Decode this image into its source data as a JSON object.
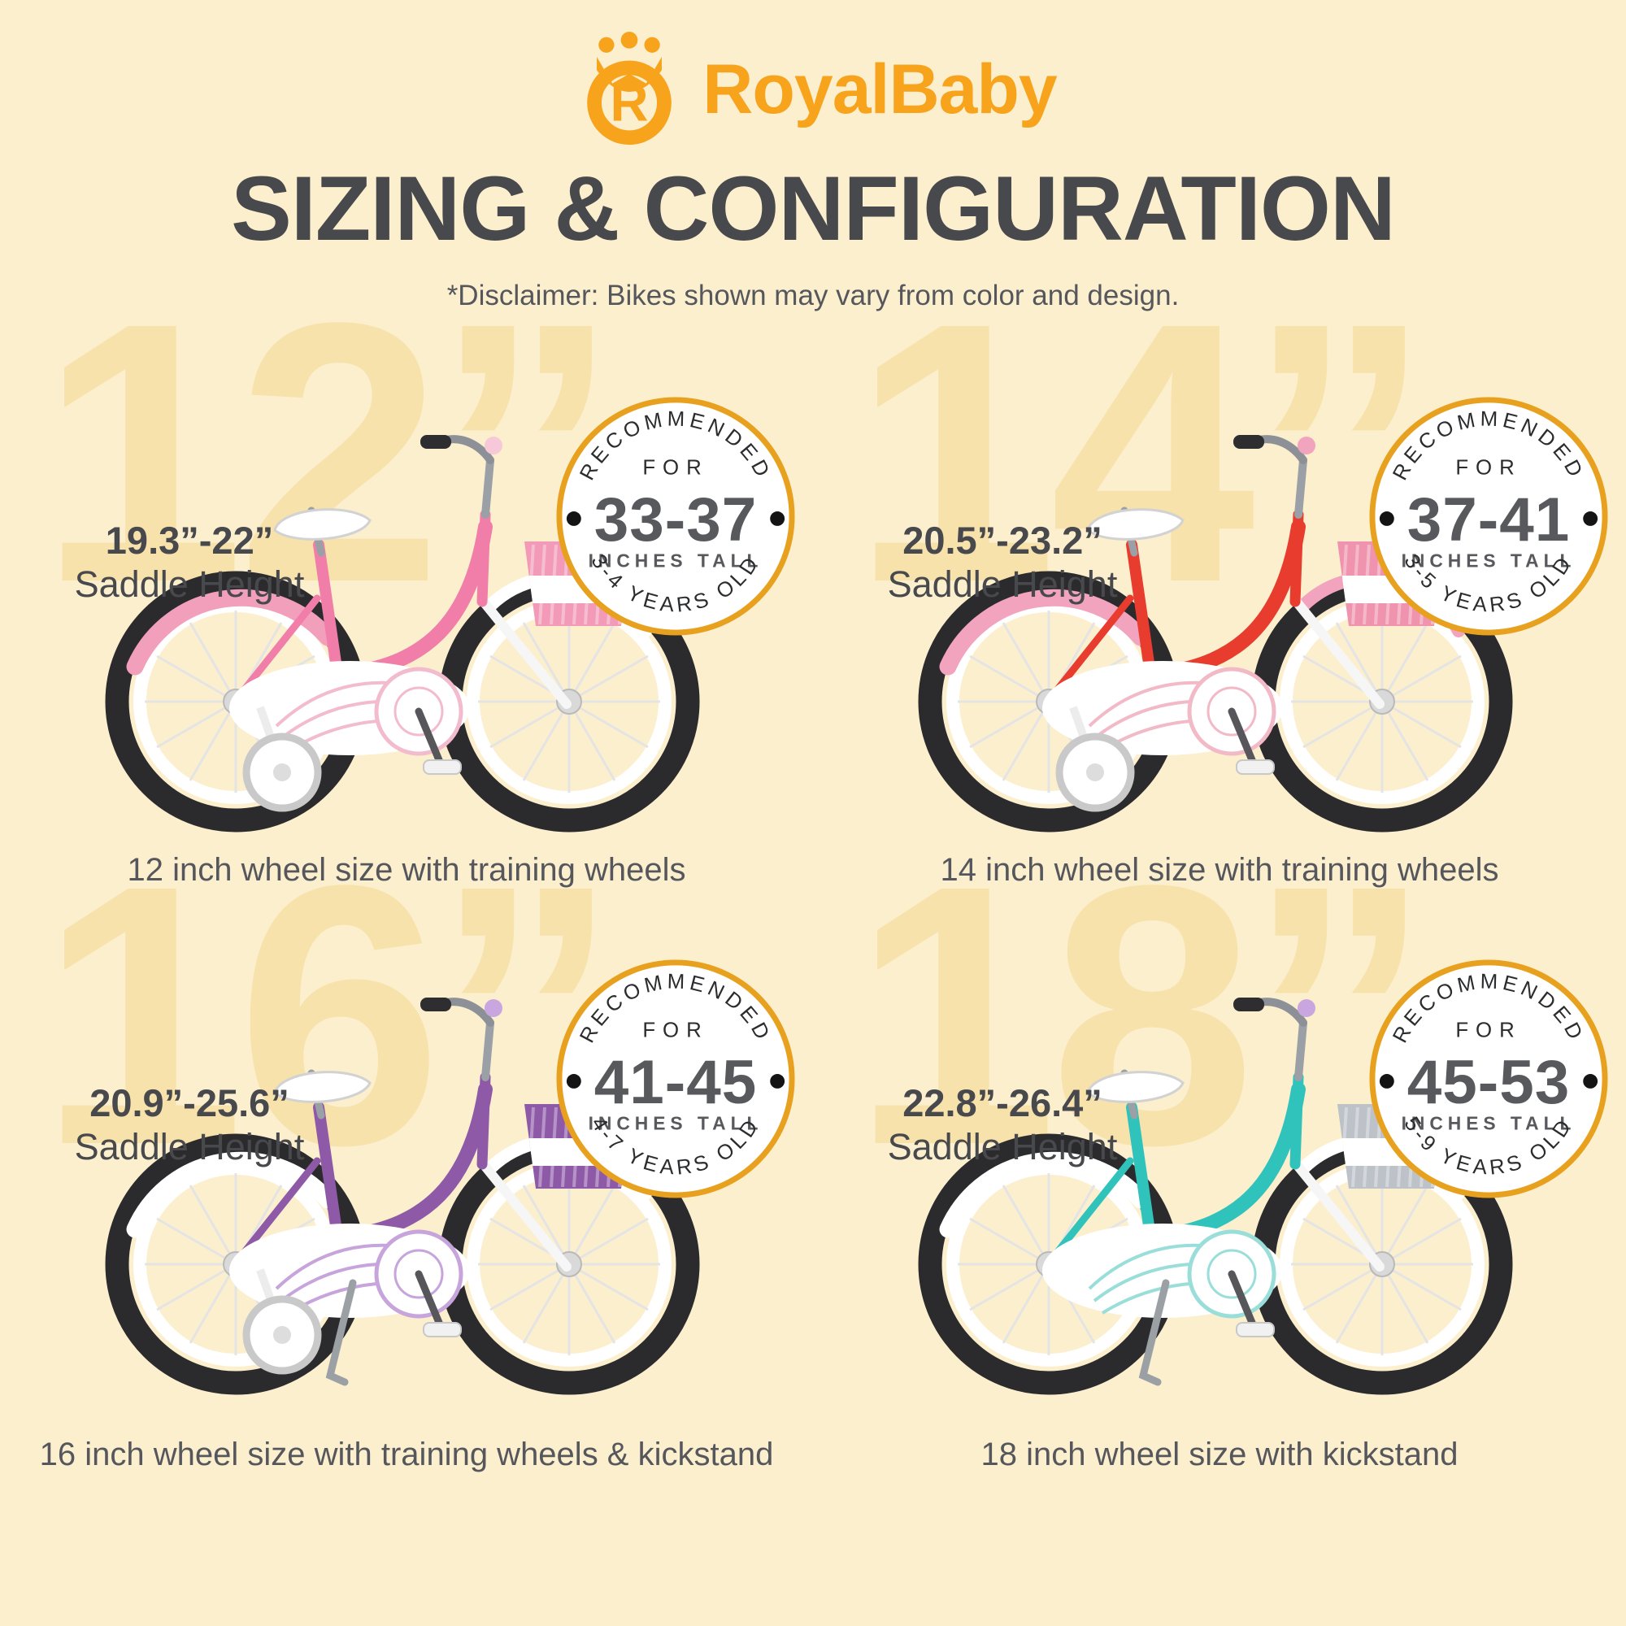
{
  "colors": {
    "background": "#FCEFCE",
    "big_number": "#F8E2AB",
    "brand_orange": "#F7A31C",
    "badge_ring": "#E8A11E",
    "title_gray": "#48494D",
    "text_gray": "#55575C",
    "badge_number_gray": "#58595D",
    "badge_text_dark": "#2B2C2E"
  },
  "header": {
    "brand": "RoyalBaby",
    "title": "SIZING & CONFIGURATION",
    "disclaimer": "*Disclaimer: Bikes shown may vary from color and design."
  },
  "badge_labels": {
    "recommended": "RECOMMENDED",
    "for": "FOR",
    "inches": "INCHES TALL"
  },
  "bikes": [
    {
      "size_label": "12”",
      "saddle_range": "19.3”-22”",
      "saddle_label": "Saddle Height",
      "height_range": "33-37",
      "age_range": "3-4 YEARS OLD",
      "caption": "12 inch wheel size with training wheels",
      "training_wheels": true,
      "kickstand": false,
      "colors": {
        "frame": "#F07EA8",
        "fender": "#F29FBC",
        "fender_front": "#FFFFFF",
        "basket": "#F29AB8",
        "wing": "#F3BBCE",
        "deco": "#F7C8D8"
      }
    },
    {
      "size_label": "14”",
      "saddle_range": "20.5”-23.2”",
      "saddle_label": "Saddle Height",
      "height_range": "37-41",
      "age_range": "3-5 YEARS OLD",
      "caption": "14 inch wheel size with training wheels",
      "training_wheels": true,
      "kickstand": false,
      "colors": {
        "frame": "#E73C2E",
        "fender": "#F2A3BE",
        "fender_front": "#F2A3BE",
        "basket": "#EF93AE",
        "wing": "#F2B9C7",
        "deco": "#F2A3BE"
      }
    },
    {
      "size_label": "16”",
      "saddle_range": "20.9”-25.6”",
      "saddle_label": "Saddle Height",
      "height_range": "41-45",
      "age_range": "4-7 YEARS OLD",
      "caption": "16 inch wheel size with training wheels & kickstand",
      "training_wheels": true,
      "kickstand": true,
      "colors": {
        "frame": "#8E5AA8",
        "fender": "#FFFFFF",
        "fender_front": "#FFFFFF",
        "basket": "#8E5AA8",
        "wing": "#C7A4DB",
        "deco": "#C9A6E0"
      }
    },
    {
      "size_label": "18”",
      "saddle_range": "22.8”-26.4”",
      "saddle_label": "Saddle Height",
      "height_range": "45-53",
      "age_range": "5-9 YEARS OLD",
      "caption": "18 inch wheel size with kickstand",
      "training_wheels": false,
      "kickstand": true,
      "colors": {
        "frame": "#30C3BC",
        "fender": "#FFFFFF",
        "fender_front": "#FFFFFF",
        "basket": "#BCC2C8",
        "wing": "#9ADEDA",
        "deco": "#C9A6E0"
      }
    }
  ]
}
